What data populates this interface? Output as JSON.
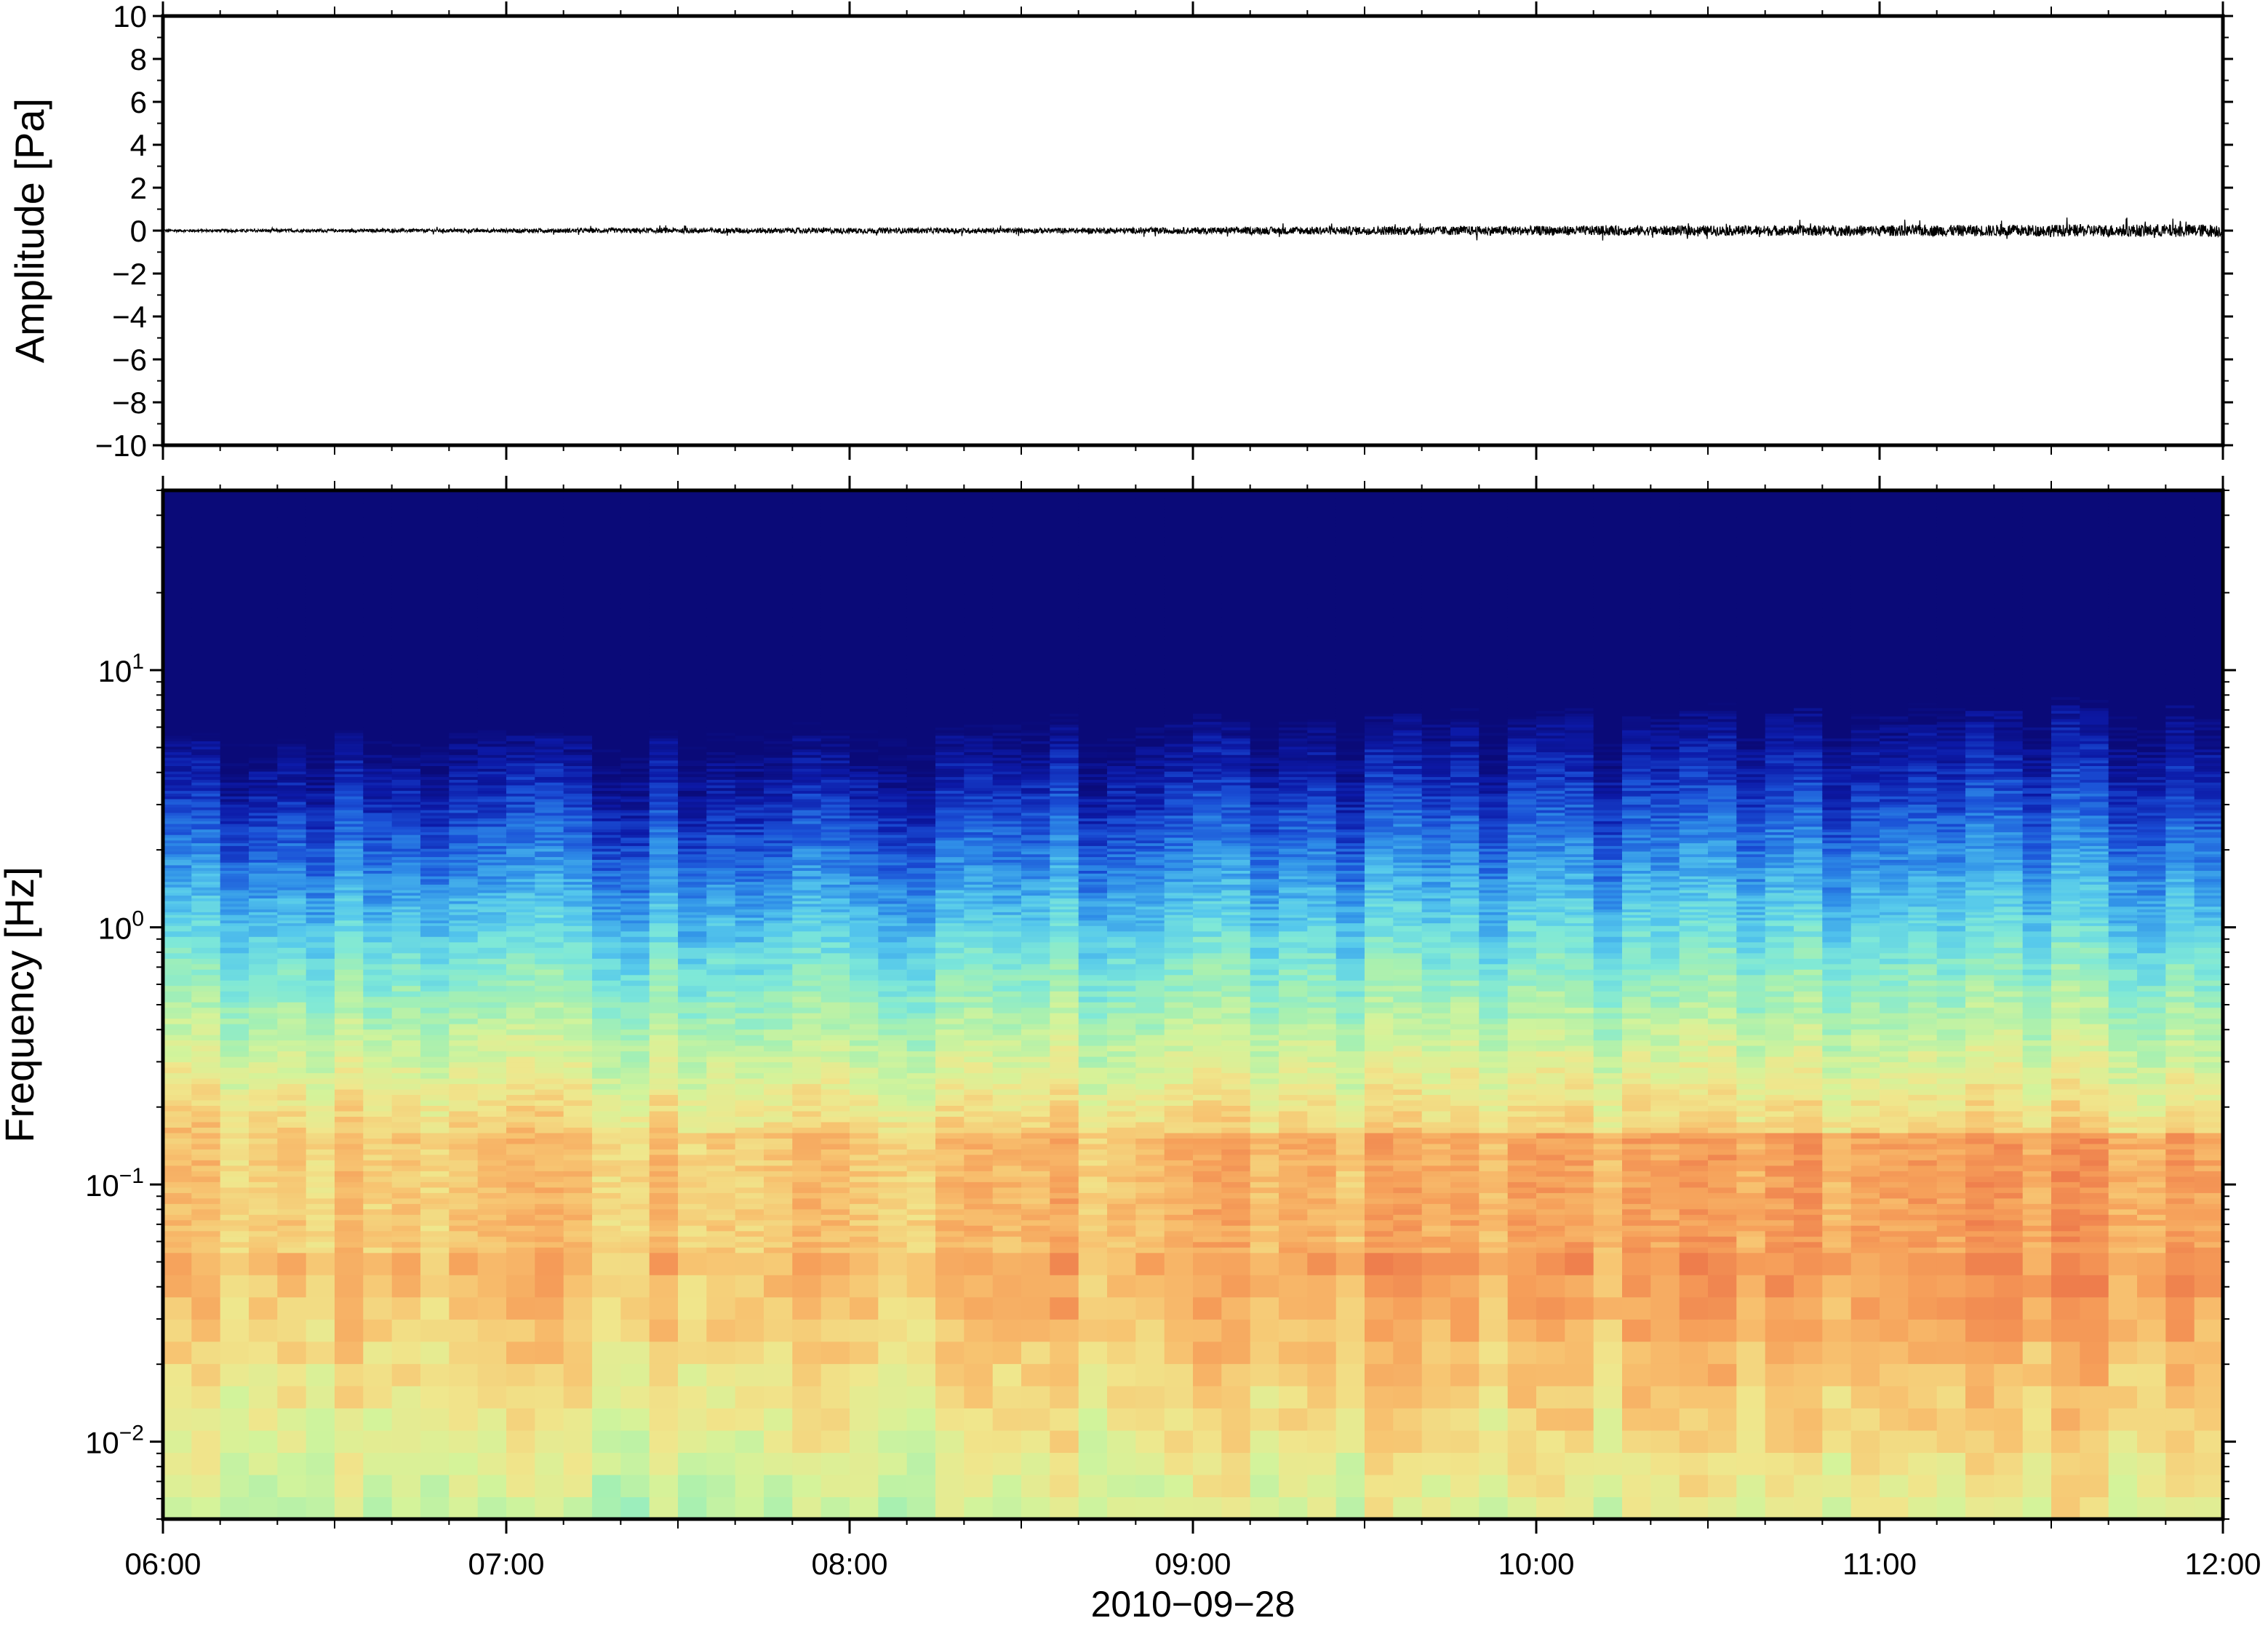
{
  "chart_data": [
    {
      "type": "line",
      "ylabel": "Amplitude [Pa]",
      "ylim": [
        -10,
        10
      ],
      "yticks": [
        "10",
        "8",
        "6",
        "4",
        "2",
        "0",
        "−2",
        "−4",
        "−6",
        "−8",
        "−10"
      ],
      "ytick_values": [
        10,
        8,
        6,
        4,
        2,
        0,
        -2,
        -4,
        -6,
        -8,
        -10
      ],
      "xlim": [
        "06:00",
        "12:00"
      ],
      "series": [
        {
          "x_hours": [
            6.0,
            6.5,
            7.0,
            7.5,
            8.0,
            8.5,
            9.0,
            9.5,
            10.0,
            10.5,
            11.0,
            11.5,
            12.0
          ],
          "envelope_pa": [
            0.06,
            0.07,
            0.09,
            0.12,
            0.13,
            0.12,
            0.15,
            0.2,
            0.22,
            0.23,
            0.25,
            0.28,
            0.3
          ],
          "color": "#000000"
        }
      ]
    },
    {
      "type": "heatmap",
      "ylabel": "Frequency [Hz]",
      "yscale": "log",
      "ylim": [
        0.005,
        50
      ],
      "ytick_base": "10",
      "yticks": [
        {
          "value": 10,
          "exp": "1"
        },
        {
          "value": 1,
          "exp": "0"
        },
        {
          "value": 0.1,
          "exp": "−1"
        },
        {
          "value": 0.01,
          "exp": "−2"
        }
      ],
      "xlabel": "2010−09−28",
      "xticks": [
        "06:00",
        "07:00",
        "08:00",
        "09:00",
        "10:00",
        "11:00",
        "12:00"
      ],
      "colormap": [
        "#0a0a78",
        "#0c1aa8",
        "#1a4fd6",
        "#2f8fe8",
        "#55c8ec",
        "#7ee8d8",
        "#a8f0b0",
        "#d4f39a",
        "#f0e68c",
        "#f7c471",
        "#f6a05a",
        "#ee7d4c"
      ],
      "note_time_range_hours": [
        6,
        12
      ]
    }
  ]
}
